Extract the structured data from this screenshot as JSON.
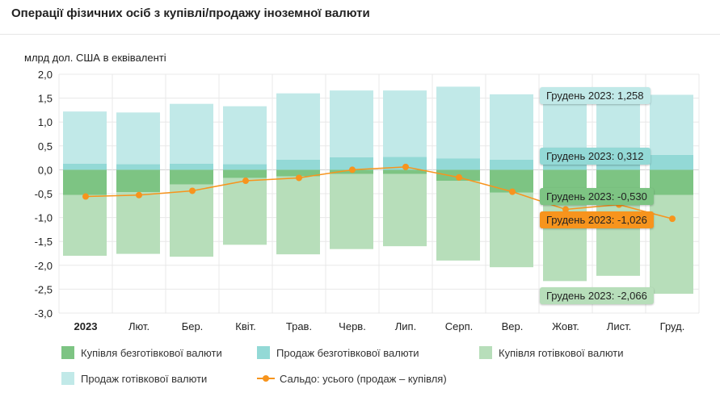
{
  "chart_data": {
    "type": "bar",
    "title": "Операції фізичних осіб з купівлі/продажу іноземної валюти",
    "ylabel": "млрд дол. США в еквіваленті",
    "ylim": [
      -3.0,
      2.0
    ],
    "yticks": [
      "2,0",
      "1,5",
      "1,0",
      "0,5",
      "0,0",
      "-0,5",
      "-1,0",
      "-1,5",
      "-2,0",
      "-2,5",
      "-3,0"
    ],
    "categories": [
      "2023",
      "Лют.",
      "Бер.",
      "Квіт.",
      "Трав.",
      "Черв.",
      "Лип.",
      "Серп.",
      "Вер.",
      "Жовт.",
      "Лист.",
      "Груд."
    ],
    "series": [
      {
        "name": "Купівля безготівкової валюти",
        "color": "#7dc483",
        "values": [
          -0.53,
          -0.47,
          -0.31,
          -0.17,
          -0.14,
          -0.09,
          -0.09,
          -0.23,
          -0.48,
          -0.52,
          -0.52,
          -0.53
        ]
      },
      {
        "name": "Продаж безготівкової валюти",
        "color": "#93d9d6",
        "values": [
          0.13,
          0.12,
          0.13,
          0.12,
          0.21,
          0.26,
          0.27,
          0.24,
          0.21,
          0.28,
          0.29,
          0.312
        ]
      },
      {
        "name": "Купівля готівкової валюти",
        "color": "#b7deba",
        "values": [
          -1.27,
          -1.29,
          -1.51,
          -1.4,
          -1.63,
          -1.57,
          -1.51,
          -1.67,
          -1.56,
          -1.81,
          -1.7,
          -2.066
        ]
      },
      {
        "name": "Продаж готівкової валюти",
        "color": "#c1e9e8",
        "values": [
          1.09,
          1.08,
          1.25,
          1.21,
          1.39,
          1.4,
          1.39,
          1.5,
          1.37,
          1.22,
          1.2,
          1.258
        ]
      },
      {
        "name": "Сальдо: усього (продаж – купівля)",
        "color": "#f7941d",
        "type": "line",
        "values": [
          -0.56,
          -0.53,
          -0.44,
          -0.23,
          -0.17,
          0.0,
          0.06,
          -0.16,
          -0.46,
          -0.83,
          -0.73,
          -1.026
        ]
      }
    ],
    "tooltips": [
      {
        "text": "Грудень 2023: 1,258",
        "color": "#c1e9e8"
      },
      {
        "text": "Грудень 2023: 0,312",
        "color": "#93d9d6"
      },
      {
        "text": "Грудень 2023: -0,530",
        "color": "#7dc483"
      },
      {
        "text": "Грудень 2023: -1,026",
        "color": "#f7941d"
      },
      {
        "text": "Грудень 2023: -2,066",
        "color": "#b7deba"
      }
    ],
    "legend_placement": "bottom"
  }
}
